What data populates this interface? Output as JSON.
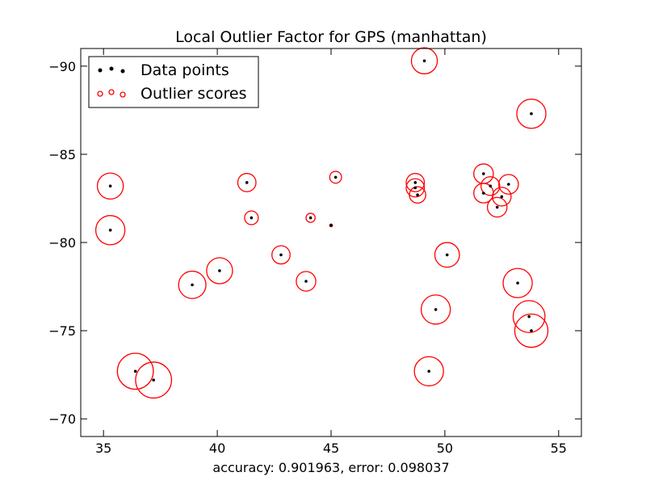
{
  "chart_data": {
    "type": "scatter",
    "title": "Local Outlier Factor for GPS (manhattan)",
    "xlabel": "accuracy: 0.901963, error: 0.098037",
    "ylabel": "",
    "xlim": [
      34,
      56
    ],
    "ylim": [
      -69,
      -91
    ],
    "x_ticks": [
      35,
      40,
      45,
      50,
      55
    ],
    "y_ticks": [
      -90,
      -85,
      -80,
      -75,
      -70
    ],
    "x_tick_labels": [
      "35",
      "40",
      "45",
      "50",
      "55"
    ],
    "y_tick_labels": [
      "−90",
      "−85",
      "−80",
      "−75",
      "−70"
    ],
    "grid": false,
    "legend": {
      "placement": "top-left",
      "entries": [
        "Data points",
        "Outlier scores"
      ]
    },
    "colors": {
      "points": "#000000",
      "scores": "#ff0000"
    },
    "series": [
      {
        "name": "Data points",
        "points": [
          {
            "x": 49.1,
            "y": -90.3
          },
          {
            "x": 53.8,
            "y": -87.3
          },
          {
            "x": 35.3,
            "y": -83.2
          },
          {
            "x": 41.3,
            "y": -83.4
          },
          {
            "x": 45.2,
            "y": -83.7
          },
          {
            "x": 48.7,
            "y": -83.4
          },
          {
            "x": 48.7,
            "y": -83.1
          },
          {
            "x": 48.8,
            "y": -82.7
          },
          {
            "x": 51.7,
            "y": -83.9
          },
          {
            "x": 51.7,
            "y": -82.8
          },
          {
            "x": 52.0,
            "y": -83.2
          },
          {
            "x": 52.8,
            "y": -83.3
          },
          {
            "x": 52.5,
            "y": -82.6
          },
          {
            "x": 52.3,
            "y": -82.0
          },
          {
            "x": 41.5,
            "y": -81.4
          },
          {
            "x": 44.1,
            "y": -81.4
          },
          {
            "x": 45.0,
            "y": -80.97
          },
          {
            "x": 35.3,
            "y": -80.7
          },
          {
            "x": 42.8,
            "y": -79.3
          },
          {
            "x": 50.1,
            "y": -79.3
          },
          {
            "x": 40.1,
            "y": -78.4
          },
          {
            "x": 38.9,
            "y": -77.6
          },
          {
            "x": 43.9,
            "y": -77.8
          },
          {
            "x": 53.2,
            "y": -77.7
          },
          {
            "x": 49.6,
            "y": -76.2
          },
          {
            "x": 53.7,
            "y": -75.8
          },
          {
            "x": 53.8,
            "y": -75.0
          },
          {
            "x": 36.4,
            "y": -72.7
          },
          {
            "x": 37.2,
            "y": -72.2
          },
          {
            "x": 49.3,
            "y": -72.7
          }
        ]
      },
      {
        "name": "Outlier scores",
        "radii_data_units": [
          0.57,
          0.64,
          0.57,
          0.4,
          0.26,
          0.4,
          0.4,
          0.36,
          0.43,
          0.43,
          0.41,
          0.43,
          0.41,
          0.43,
          0.3,
          0.2,
          0.06,
          0.64,
          0.4,
          0.54,
          0.57,
          0.6,
          0.43,
          0.64,
          0.64,
          0.7,
          0.73,
          0.79,
          0.79,
          0.64
        ]
      }
    ]
  }
}
